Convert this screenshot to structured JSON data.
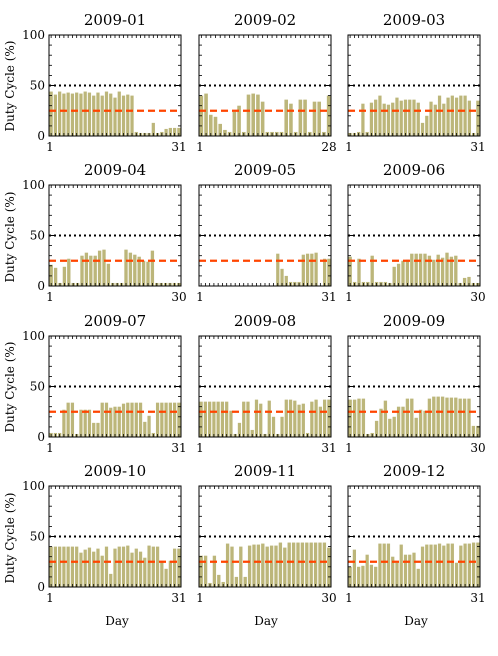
{
  "figure": {
    "ylabel": "Duty Cycle (%)",
    "xlabel": "Day"
  },
  "colors": {
    "bar": "#bcb67a",
    "dashed_line": "#ff4500",
    "dotted_line": "#000000"
  },
  "chart_data": [
    {
      "type": "bar",
      "title": "2009-01",
      "days": 31,
      "xticks": [
        1,
        31
      ],
      "ylim": [
        0,
        100
      ],
      "yticks": [
        0,
        50,
        100
      ],
      "dotted_line": 50,
      "dashed_line": 25,
      "values": [
        44,
        41,
        44,
        42,
        43,
        42,
        43,
        42,
        44,
        43,
        40,
        43,
        40,
        44,
        42,
        38,
        44,
        40,
        41,
        40,
        4,
        3,
        3,
        3,
        13,
        3,
        4,
        7,
        8,
        8,
        8
      ]
    },
    {
      "type": "bar",
      "title": "2009-02",
      "days": 28,
      "xticks": [
        1,
        28
      ],
      "ylim": [
        0,
        100
      ],
      "yticks": [
        0,
        50,
        100
      ],
      "dotted_line": 50,
      "dashed_line": 25,
      "values": [
        40,
        42,
        21,
        19,
        12,
        6,
        4,
        24,
        30,
        4,
        41,
        42,
        41,
        34,
        4,
        4,
        4,
        4,
        36,
        32,
        4,
        36,
        36,
        4,
        34,
        34,
        4,
        40
      ]
    },
    {
      "type": "bar",
      "title": "2009-03",
      "days": 31,
      "xticks": [
        1,
        31
      ],
      "ylim": [
        0,
        100
      ],
      "yticks": [
        0,
        50,
        100
      ],
      "dotted_line": 50,
      "dashed_line": 25,
      "values": [
        3,
        3,
        4,
        32,
        4,
        33,
        36,
        40,
        32,
        31,
        33,
        38,
        35,
        36,
        36,
        36,
        33,
        13,
        20,
        34,
        31,
        40,
        32,
        38,
        40,
        38,
        40,
        40,
        35,
        3,
        35
      ]
    },
    {
      "type": "bar",
      "title": "2009-04",
      "days": 30,
      "xticks": [
        1,
        30
      ],
      "ylim": [
        0,
        100
      ],
      "yticks": [
        0,
        50,
        100
      ],
      "dotted_line": 50,
      "dashed_line": 25,
      "values": [
        21,
        18,
        3,
        19,
        27,
        3,
        3,
        30,
        33,
        30,
        30,
        35,
        36,
        22,
        3,
        3,
        3,
        36,
        33,
        31,
        29,
        25,
        24,
        35,
        3,
        3,
        3,
        3,
        3,
        3
      ]
    },
    {
      "type": "bar",
      "title": "2009-05",
      "days": 31,
      "xticks": [
        1,
        31
      ],
      "ylim": [
        0,
        100
      ],
      "yticks": [
        0,
        50,
        100
      ],
      "dotted_line": 50,
      "dashed_line": 25,
      "values": [
        0,
        0,
        0,
        0,
        0,
        0,
        0,
        0,
        0,
        0,
        0,
        0,
        0,
        0,
        0,
        0,
        0,
        0,
        32,
        17,
        10,
        4,
        4,
        4,
        31,
        32,
        32,
        33,
        0,
        27,
        27
      ]
    },
    {
      "type": "bar",
      "title": "2009-06",
      "days": 30,
      "xticks": [
        1,
        30
      ],
      "ylim": [
        0,
        100
      ],
      "yticks": [
        0,
        50,
        100
      ],
      "dotted_line": 50,
      "dashed_line": 25,
      "values": [
        29,
        4,
        27,
        4,
        4,
        30,
        4,
        4,
        4,
        3,
        19,
        22,
        25,
        26,
        32,
        32,
        32,
        32,
        30,
        26,
        31,
        28,
        33,
        29,
        30,
        3,
        8,
        9,
        3,
        3
      ]
    },
    {
      "type": "bar",
      "title": "2009-07",
      "days": 31,
      "xticks": [
        1,
        31
      ],
      "ylim": [
        0,
        100
      ],
      "yticks": [
        0,
        50,
        100
      ],
      "dotted_line": 50,
      "dashed_line": 25,
      "values": [
        4,
        4,
        4,
        27,
        34,
        34,
        3,
        27,
        27,
        27,
        14,
        14,
        34,
        34,
        29,
        30,
        30,
        33,
        34,
        34,
        34,
        34,
        15,
        21,
        4,
        34,
        34,
        34,
        34,
        34,
        34
      ]
    },
    {
      "type": "bar",
      "title": "2009-08",
      "days": 31,
      "xticks": [
        1,
        31
      ],
      "ylim": [
        0,
        100
      ],
      "yticks": [
        0,
        50,
        100
      ],
      "dotted_line": 50,
      "dashed_line": 25,
      "values": [
        35,
        35,
        35,
        35,
        35,
        35,
        35,
        26,
        3,
        14,
        35,
        35,
        7,
        37,
        33,
        3,
        36,
        20,
        3,
        20,
        37,
        37,
        36,
        32,
        33,
        4,
        35,
        37,
        30,
        37,
        37
      ]
    },
    {
      "type": "bar",
      "title": "2009-09",
      "days": 30,
      "xticks": [
        1,
        30
      ],
      "ylim": [
        0,
        100
      ],
      "yticks": [
        0,
        50,
        100
      ],
      "dotted_line": 50,
      "dashed_line": 25,
      "values": [
        37,
        37,
        38,
        38,
        3,
        4,
        16,
        28,
        36,
        18,
        20,
        30,
        30,
        38,
        38,
        19,
        27,
        26,
        38,
        40,
        40,
        40,
        39,
        39,
        39,
        38,
        38,
        38,
        11,
        11
      ]
    },
    {
      "type": "bar",
      "title": "2009-10",
      "days": 31,
      "xticks": [
        1,
        31
      ],
      "ylim": [
        0,
        100
      ],
      "yticks": [
        0,
        50,
        100
      ],
      "dotted_line": 50,
      "dashed_line": 25,
      "values": [
        40,
        40,
        40,
        40,
        40,
        40,
        40,
        34,
        37,
        39,
        35,
        38,
        31,
        40,
        13,
        38,
        40,
        40,
        41,
        34,
        38,
        35,
        29,
        41,
        40,
        40,
        26,
        18,
        26,
        38,
        38
      ]
    },
    {
      "type": "bar",
      "title": "2009-11",
      "days": 30,
      "xticks": [
        1,
        30
      ],
      "ylim": [
        0,
        100
      ],
      "yticks": [
        0,
        50,
        100
      ],
      "dotted_line": 50,
      "dashed_line": 25,
      "values": [
        31,
        31,
        4,
        31,
        12,
        5,
        43,
        40,
        10,
        40,
        10,
        41,
        42,
        42,
        43,
        40,
        41,
        41,
        44,
        39,
        44,
        44,
        44,
        44,
        44,
        44,
        44,
        44,
        44,
        39
      ]
    },
    {
      "type": "bar",
      "title": "2009-12",
      "days": 31,
      "xticks": [
        1,
        31
      ],
      "ylim": [
        0,
        100
      ],
      "yticks": [
        0,
        50,
        100
      ],
      "dotted_line": 50,
      "dashed_line": 25,
      "values": [
        20,
        37,
        20,
        21,
        32,
        22,
        20,
        43,
        43,
        43,
        30,
        24,
        42,
        32,
        32,
        34,
        18,
        40,
        42,
        42,
        42,
        43,
        41,
        43,
        43,
        24,
        41,
        43,
        43,
        44,
        44
      ]
    }
  ]
}
